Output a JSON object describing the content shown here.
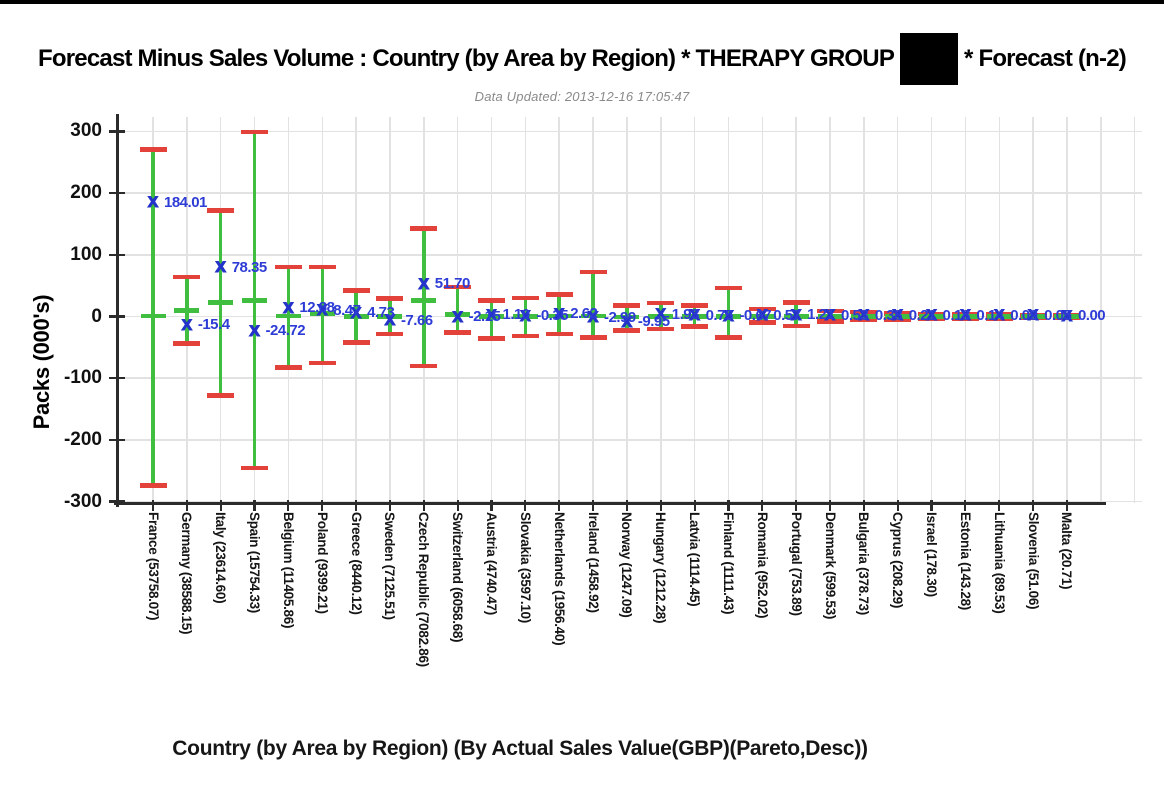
{
  "header": {
    "title_prefix": "Forecast Minus Sales Volume : Country (by Area by Region) * THERAPY GROUP",
    "title_suffix": "* Forecast (n-2)",
    "redaction_box": "black-censor-block",
    "subtitle": "Data Updated: 2013-12-16 17:05:47"
  },
  "chart_data": {
    "type": "scatter",
    "subtype": "error-bar-chart",
    "title": "Forecast Minus Sales Volume : Country (by Area by Region) * THERAPY GROUP [redacted] * Forecast (n-2)",
    "ylabel": "Packs (000's)",
    "xlabel": "Country (by Area by Region) (By Actual Sales Value(GBP)(Pareto,Desc))",
    "ylim": [
      -300,
      300
    ],
    "yticks": [
      300,
      200,
      100,
      0,
      -100,
      -200,
      -300
    ],
    "grid": true,
    "legend": false,
    "colors": {
      "marker": "#2433c9",
      "value_label": "#2e3cd6",
      "error_bar": "#3fbe3f",
      "cap": "#e2423a",
      "axis": "#2b2b2b",
      "gridline": "#e2e2e2"
    },
    "points": [
      {
        "name": "France (53758.07)",
        "value": 184.01,
        "value_label": "184.01",
        "low": -274,
        "high": 271,
        "dash": 0.5
      },
      {
        "name": "Germany (38588.15)",
        "value": -15.4,
        "value_label": "-15.4",
        "low": -44,
        "high": 64,
        "dash": 10
      },
      {
        "name": "Italy (23614.60)",
        "value": 78.35,
        "value_label": "78.35",
        "low": -128,
        "high": 172,
        "dash": 23
      },
      {
        "name": "Spain (15754.33)",
        "value": -24.72,
        "value_label": "-24.72",
        "low": -246,
        "high": 299,
        "dash": 26
      },
      {
        "name": "Belgium (11405.86)",
        "value": 12.88,
        "value_label": "12.88",
        "low": -83,
        "high": 80,
        "dash": 1
      },
      {
        "name": "Poland (9399.21)",
        "value": 8.47,
        "value_label": "8.47",
        "low": -75,
        "high": 80,
        "dash": 5
      },
      {
        "name": "Greece (8440.12)",
        "value": 4.73,
        "value_label": "4.73",
        "low": -42,
        "high": 42,
        "dash": 0
      },
      {
        "name": "Sweden (7125.51)",
        "value": -7.66,
        "value_label": "-7.66",
        "low": -28,
        "high": 29,
        "dash": 0
      },
      {
        "name": "Czech Republic (7082.86)",
        "value": 51.7,
        "value_label": "51.70",
        "low": -80,
        "high": 143,
        "dash": 26
      },
      {
        "name": "Switzerland (6058.68)",
        "value": -2.15,
        "value_label": "-2.15",
        "low": -26,
        "high": 48,
        "dash": 3
      },
      {
        "name": "Austria (4740.47)",
        "value": 1.1,
        "value_label": "1.10",
        "low": -36,
        "high": 26,
        "dash": 0
      },
      {
        "name": "Slovakia (3597.10)",
        "value": -0.35,
        "value_label": "-0.35",
        "low": -32,
        "high": 30,
        "dash": 0
      },
      {
        "name": "Netherlands (1956.40)",
        "value": 2.62,
        "value_label": "2.62",
        "low": -28,
        "high": 36,
        "dash": 1
      },
      {
        "name": "Ireland (1458.92)",
        "value": -2.99,
        "value_label": "-2.99",
        "low": -34,
        "high": 72,
        "dash": 1
      },
      {
        "name": "Norway (1247.09)",
        "value": -9.95,
        "value_label": "-9.95",
        "low": -23,
        "high": 18,
        "dash": -1
      },
      {
        "name": "Hungary (1212.28)",
        "value": 1.93,
        "value_label": "1.93",
        "low": -20,
        "high": 22,
        "dash": 0
      },
      {
        "name": "Latvia (1114.45)",
        "value": 0.75,
        "value_label": "0.75",
        "low": -16,
        "high": 18,
        "dash": 0
      },
      {
        "name": "Finland (1111.43)",
        "value": -0.67,
        "value_label": "-0.67",
        "low": -34,
        "high": 46,
        "dash": 0
      },
      {
        "name": "Romania (952.02)",
        "value": 0.57,
        "value_label": "0.57",
        "low": -10,
        "high": 12,
        "dash": 0
      },
      {
        "name": "Portugal (753.89)",
        "value": 1.21,
        "value_label": "1.21",
        "low": -15,
        "high": 23,
        "dash": 0
      },
      {
        "name": "Denmark (599.53)",
        "value": 0.53,
        "value_label": "0.53",
        "low": -8,
        "high": 9,
        "dash": 0
      },
      {
        "name": "Bulgaria (378.73)",
        "value": 0.38,
        "value_label": "0.38",
        "low": -6,
        "high": 7,
        "dash": 0
      },
      {
        "name": "Cyprus (208.29)",
        "value": 0.21,
        "value_label": "0.21",
        "low": -5,
        "high": 5,
        "dash": 0
      },
      {
        "name": "Israel (178.30)",
        "value": 0.18,
        "value_label": "0.18",
        "low": -4,
        "high": 4,
        "dash": 0
      },
      {
        "name": "Estonia (143.28)",
        "value": 0.14,
        "value_label": "0.14",
        "low": -3,
        "high": 4,
        "dash": 0
      },
      {
        "name": "Lithuania (89.53)",
        "value": 0.09,
        "value_label": "0.09",
        "low": -3,
        "high": 3,
        "dash": 0
      },
      {
        "name": "Slovenia (51.06)",
        "value": 0.05,
        "value_label": "0.05",
        "low": -2,
        "high": 2,
        "dash": 0
      },
      {
        "name": "Malta (20.71)",
        "value": 0.0,
        "value_label": "0.00",
        "low": -1.5,
        "high": 1.5,
        "dash": 0
      }
    ]
  }
}
